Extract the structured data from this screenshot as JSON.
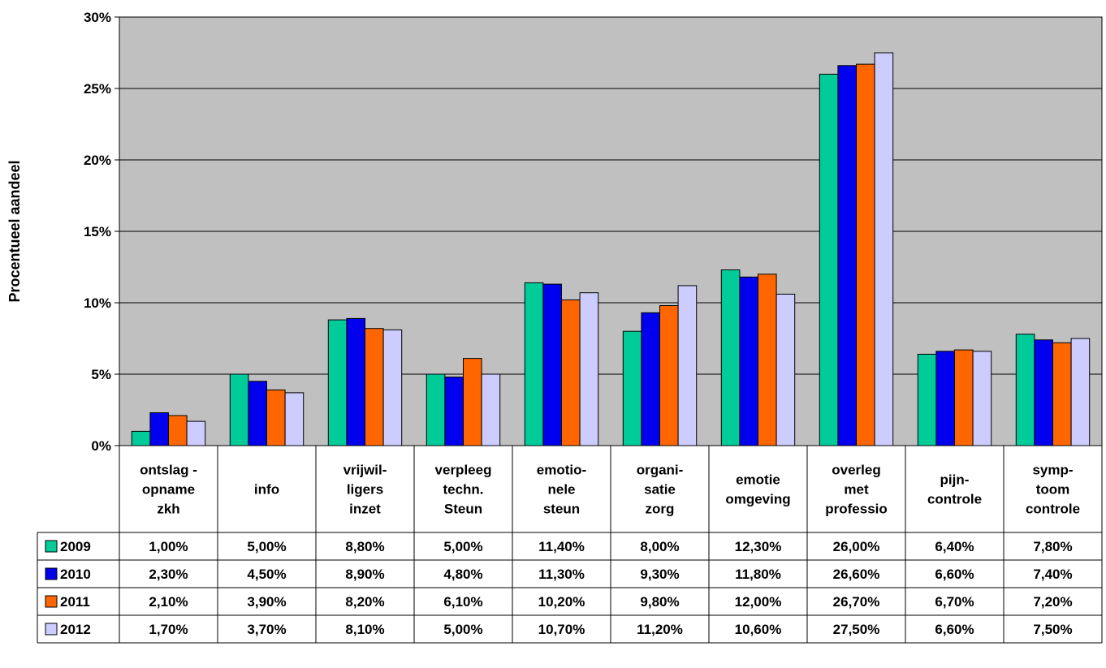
{
  "chart_data": {
    "type": "bar",
    "title": "",
    "xlabel": "",
    "ylabel": "Procentueel aandeel",
    "ylim": [
      0,
      30
    ],
    "yticks": [
      "0%",
      "5%",
      "10%",
      "15%",
      "20%",
      "25%",
      "30%"
    ],
    "grid": true,
    "legend": "data-table-left",
    "categories": [
      [
        "ontslag -",
        "opname",
        "zkh"
      ],
      [
        "info"
      ],
      [
        "vrijwil-",
        "ligers",
        "inzet"
      ],
      [
        "verpleeg",
        "techn.",
        "Steun"
      ],
      [
        "emotio-",
        "nele",
        "steun"
      ],
      [
        "organi-",
        "satie",
        "zorg"
      ],
      [
        "emotie",
        "omgeving"
      ],
      [
        "overleg",
        "met",
        "professio"
      ],
      [
        "pijn-",
        "controle"
      ],
      [
        "symp-",
        "toom",
        "controle"
      ]
    ],
    "series": [
      {
        "name": "2009",
        "color": "#00cc99",
        "values": [
          1.0,
          5.0,
          8.8,
          5.0,
          11.4,
          8.0,
          12.3,
          26.0,
          6.4,
          7.8
        ],
        "labels": [
          "1,00%",
          "5,00%",
          "8,80%",
          "5,00%",
          "11,40%",
          "8,00%",
          "12,30%",
          "26,00%",
          "6,40%",
          "7,80%"
        ]
      },
      {
        "name": "2010",
        "color": "#0000ee",
        "values": [
          2.3,
          4.5,
          8.9,
          4.8,
          11.3,
          9.3,
          11.8,
          26.6,
          6.6,
          7.4
        ],
        "labels": [
          "2,30%",
          "4,50%",
          "8,90%",
          "4,80%",
          "11,30%",
          "9,30%",
          "11,80%",
          "26,60%",
          "6,60%",
          "7,40%"
        ]
      },
      {
        "name": "2011",
        "color": "#ff6600",
        "values": [
          2.1,
          3.9,
          8.2,
          6.1,
          10.2,
          9.8,
          12.0,
          26.7,
          6.7,
          7.2
        ],
        "labels": [
          "2,10%",
          "3,90%",
          "8,20%",
          "6,10%",
          "10,20%",
          "9,80%",
          "12,00%",
          "26,70%",
          "6,70%",
          "7,20%"
        ]
      },
      {
        "name": "2012",
        "color": "#ccccff",
        "values": [
          1.7,
          3.7,
          8.1,
          5.0,
          10.7,
          11.2,
          10.6,
          27.5,
          6.6,
          7.5
        ],
        "labels": [
          "1,70%",
          "3,70%",
          "8,10%",
          "5,00%",
          "10,70%",
          "11,20%",
          "10,60%",
          "27,50%",
          "6,60%",
          "7,50%"
        ]
      }
    ]
  }
}
